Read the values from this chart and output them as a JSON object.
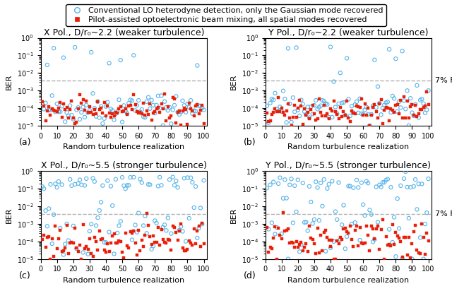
{
  "titles": [
    "X Pol., D/r$_0$~2.2 (weaker turbulence)",
    "Y Pol., D/r$_0$~2.2 (weaker turbulence)",
    "X Pol., D/r$_0$~5.5 (stronger turbulence)",
    "Y Pol., D/r$_0$~5.5 (stronger turbulence)"
  ],
  "titles_plain": [
    "X Pol., D/r₀~2.2 (weaker turbulence)",
    "Y Pol., D/r₀~2.2 (weaker turbulence)",
    "X Pol., D/r₀~5.5 (stronger turbulence)",
    "Y Pol., D/r₀~5.5 (stronger turbulence)"
  ],
  "panel_labels": [
    "(a)",
    "(b)",
    "(c)",
    "(d)"
  ],
  "show_fec_label": [
    false,
    true,
    false,
    true
  ],
  "xlabel": "Random turbulence realization",
  "ylabel": "BER",
  "ylim": [
    1e-05,
    1.0
  ],
  "xlim": [
    0,
    102
  ],
  "fec_level": 0.0038,
  "dashed_color": "#b0b0b0",
  "circle_color": "#56b4e9",
  "square_color": "#e8200a",
  "legend_circle_label": "Conventional LO heterodyne detection, only the Gaussian mode recovered",
  "legend_square_label": "Pilot-assisted optoelectronic beam mixing, all spatial modes recovered",
  "n_points": 100,
  "fec_fontsize": 8,
  "title_fontsize": 9,
  "label_fontsize": 8,
  "legend_fontsize": 8
}
